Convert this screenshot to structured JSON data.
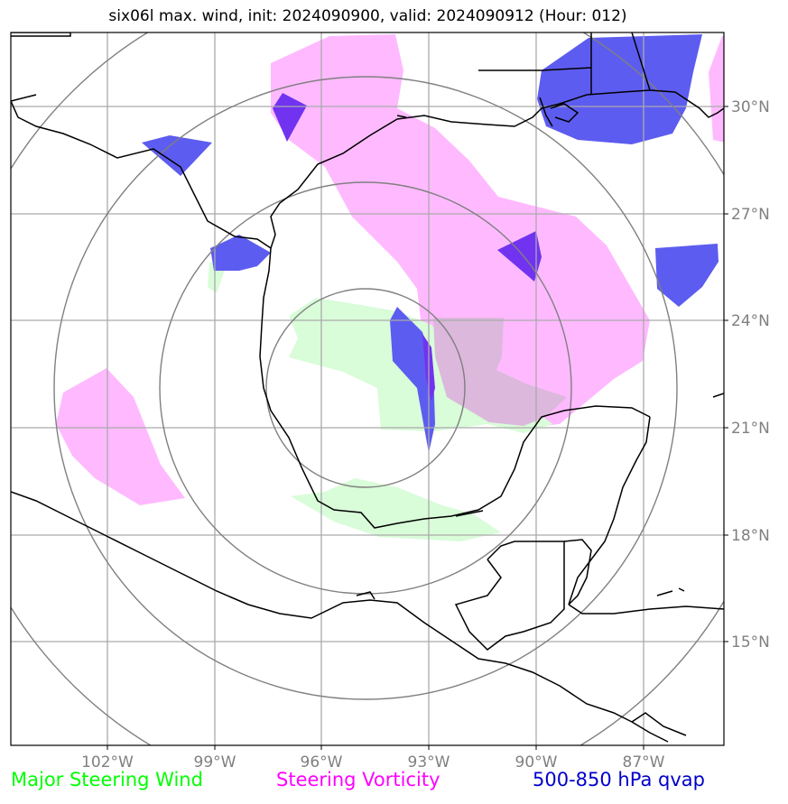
{
  "title": "six06l max. wind, init: 2024090900, valid: 2024090912 (Hour: 012)",
  "lat_labels": [
    "30°N",
    "27°N",
    "24°N",
    "21°N",
    "18°N",
    "15°N"
  ],
  "lon_labels": [
    "102°W",
    "99°W",
    "96°W",
    "93°W",
    "90°W",
    "87°W"
  ],
  "legend": {
    "wind": "Major Steering Wind",
    "vorticity": "Steering Vorticity",
    "qvap": "500-850 hPa qvap"
  },
  "colors": {
    "wind": "#00ff00",
    "vorticity": "#ff00ff",
    "qvap": "#0000cc",
    "wind_fill": "#d9fcd9",
    "vorticity_fill": "#ffbaff",
    "qvap_fill": "#5555ee",
    "grid": "#aaaaaa",
    "rings": "#808080"
  },
  "chart_data": {
    "type": "map",
    "projection": "lat-lon",
    "lon_range": [
      -104.7,
      -84.8
    ],
    "lat_range": [
      12.0,
      32.0
    ],
    "lon_ticks": [
      -102,
      -99,
      -96,
      -93,
      -90,
      -87
    ],
    "lat_ticks": [
      30,
      27,
      24,
      21,
      18,
      15
    ],
    "grid": true,
    "ring_center": {
      "lon": -94.6,
      "lat": 22.5
    },
    "ring_count": 4
  }
}
